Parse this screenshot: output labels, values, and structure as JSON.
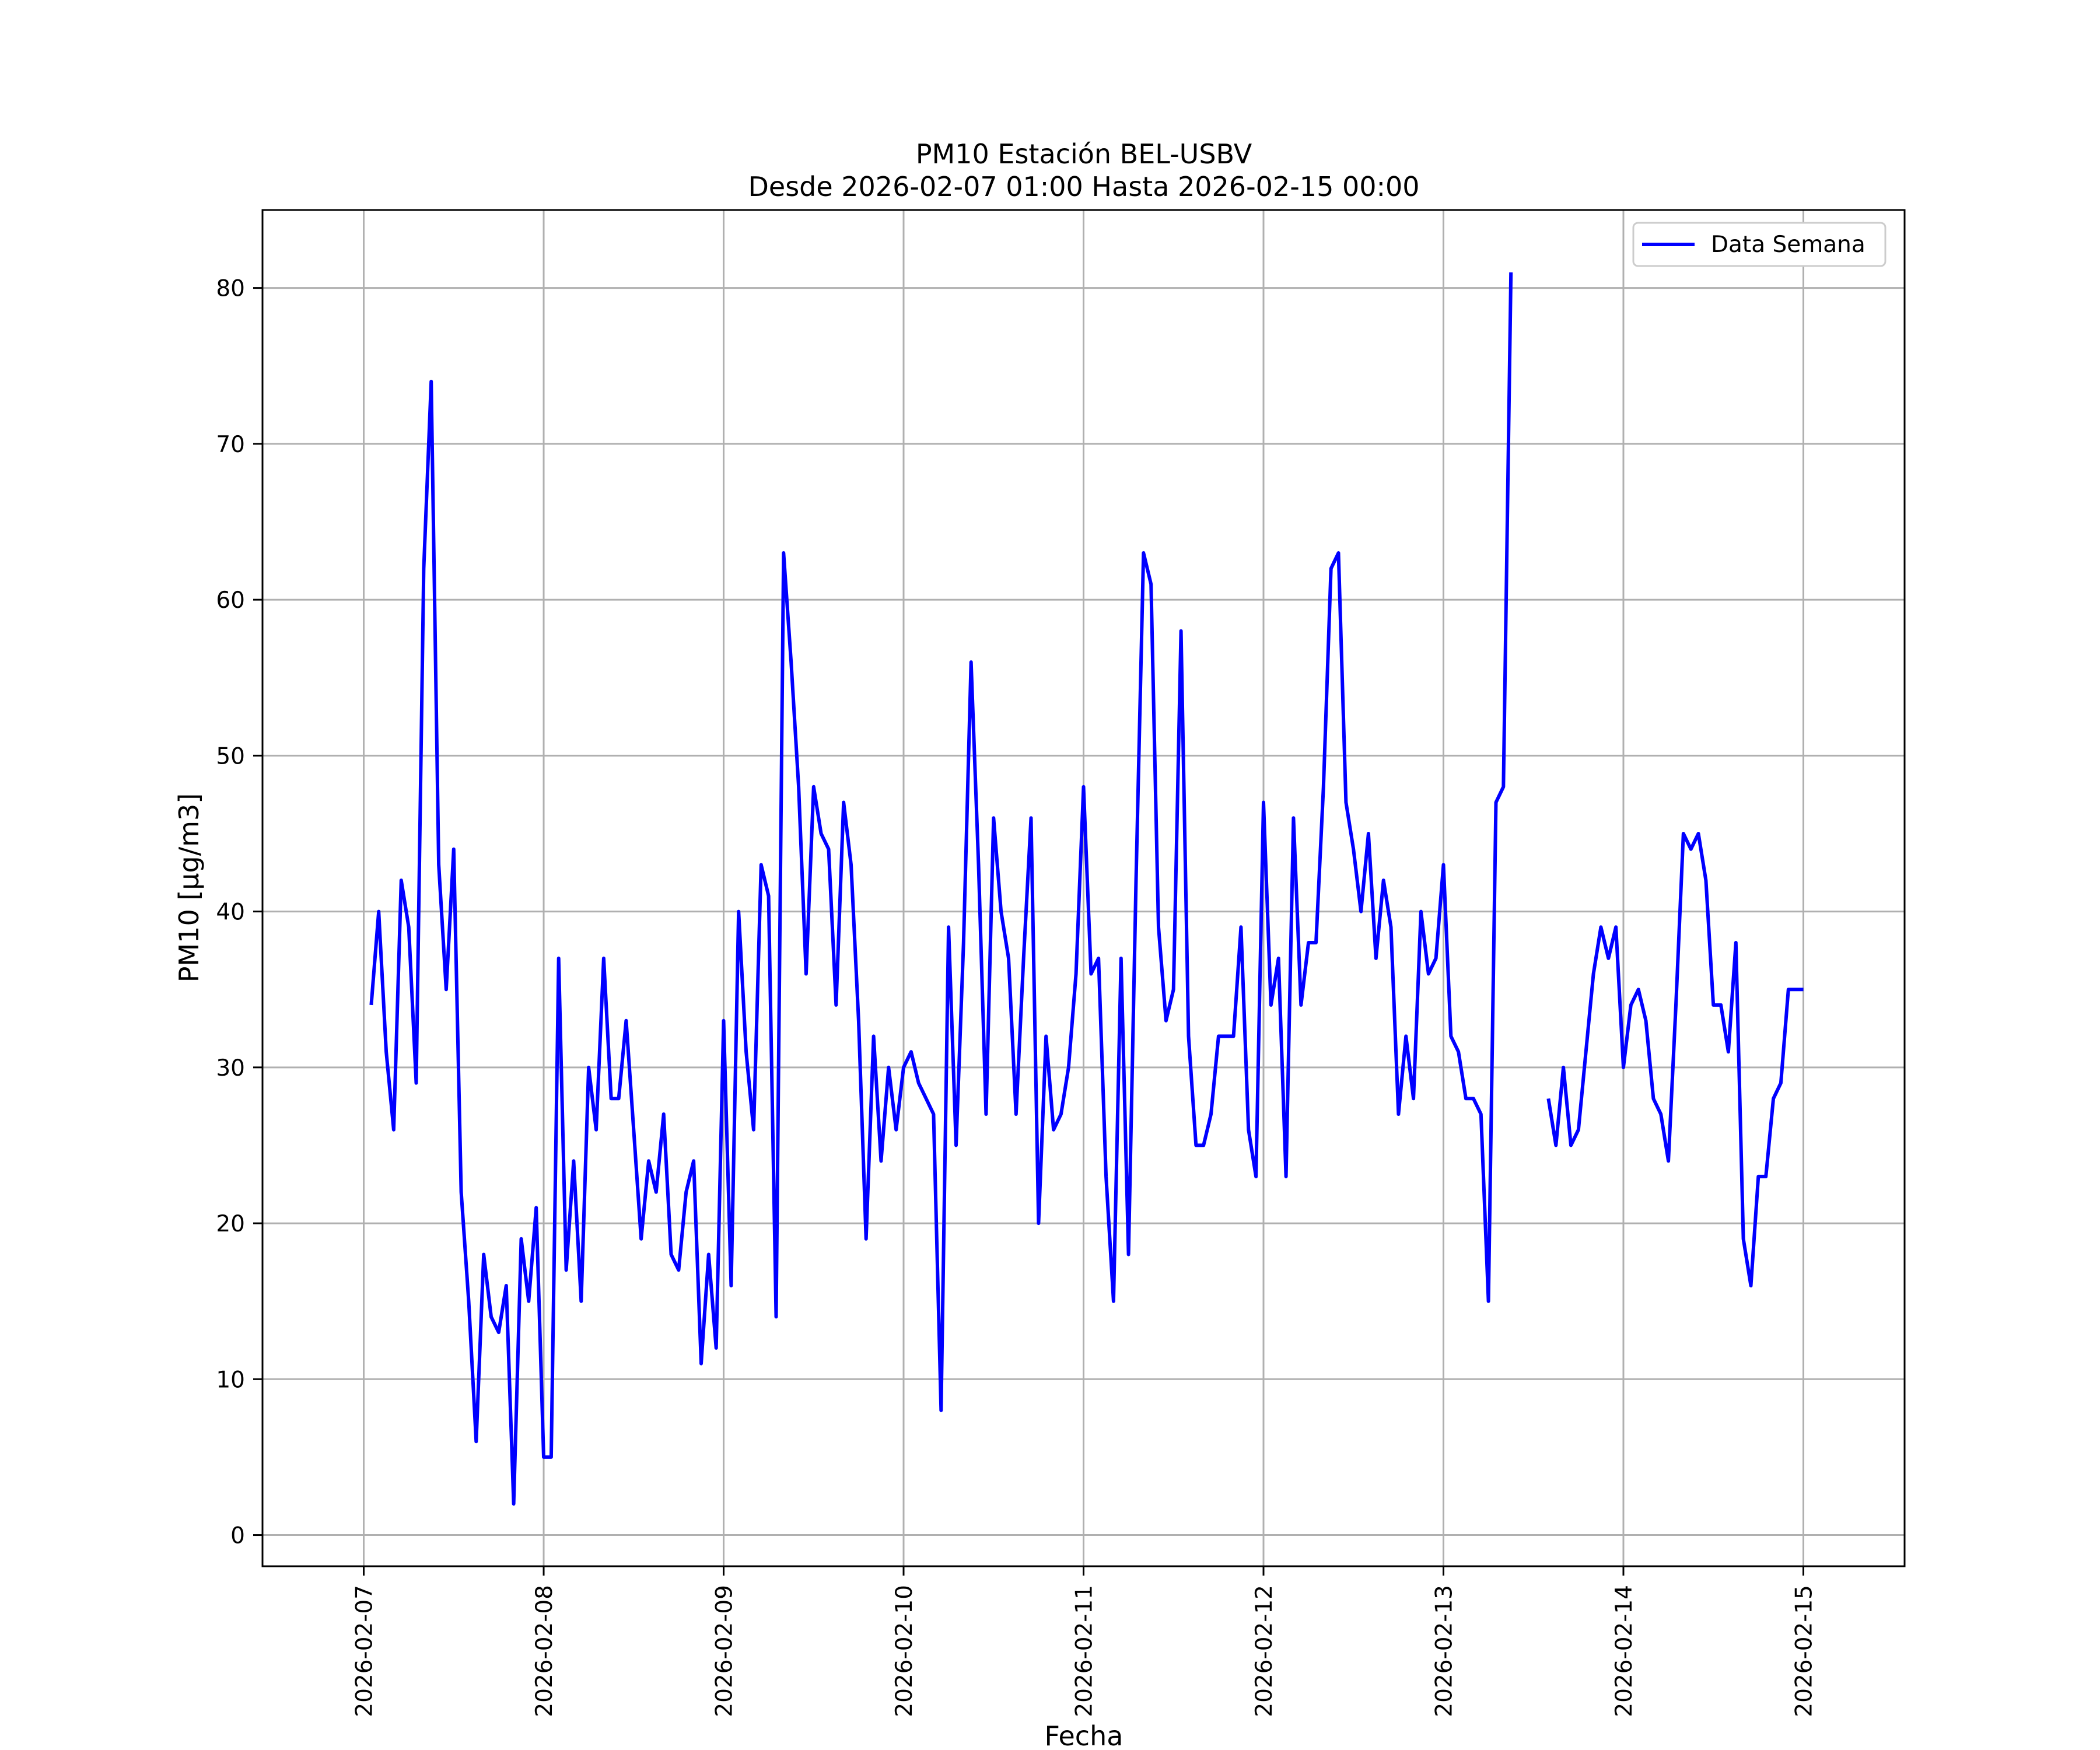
{
  "chart_data": {
    "type": "line",
    "title": "PM10 Estación BEL-USBV",
    "subtitle": "Desde 2026-02-07 01:00 Hasta 2026-02-15 00:00",
    "xlabel": "Fecha",
    "ylabel": "PM10 [µg/m3]",
    "x_tick_labels": [
      "2026-02-07",
      "2026-02-08",
      "2026-02-09",
      "2026-02-10",
      "2026-02-11",
      "2026-02-12",
      "2026-02-13",
      "2026-02-14",
      "2026-02-15"
    ],
    "y_ticks": [
      0,
      10,
      20,
      30,
      40,
      50,
      60,
      70,
      80
    ],
    "xlim": [
      "2026-02-06 10:30",
      "2026-02-15 13:30"
    ],
    "ylim": [
      -2,
      85
    ],
    "grid": true,
    "legend_position": "top-right",
    "series": [
      {
        "name": "Data Semana",
        "color": "#0000ff",
        "points": [
          [
            "2026-02-07 01:00",
            34
          ],
          [
            "2026-02-07 02:00",
            40
          ],
          [
            "2026-02-07 03:00",
            31
          ],
          [
            "2026-02-07 04:00",
            26
          ],
          [
            "2026-02-07 05:00",
            42
          ],
          [
            "2026-02-07 06:00",
            39
          ],
          [
            "2026-02-07 07:00",
            29
          ],
          [
            "2026-02-07 08:00",
            62
          ],
          [
            "2026-02-07 09:00",
            74
          ],
          [
            "2026-02-07 10:00",
            43
          ],
          [
            "2026-02-07 11:00",
            35
          ],
          [
            "2026-02-07 12:00",
            44
          ],
          [
            "2026-02-07 13:00",
            22
          ],
          [
            "2026-02-07 14:00",
            15
          ],
          [
            "2026-02-07 15:00",
            6
          ],
          [
            "2026-02-07 16:00",
            18
          ],
          [
            "2026-02-07 17:00",
            14
          ],
          [
            "2026-02-07 18:00",
            13
          ],
          [
            "2026-02-07 19:00",
            16
          ],
          [
            "2026-02-07 20:00",
            2
          ],
          [
            "2026-02-07 21:00",
            19
          ],
          [
            "2026-02-07 22:00",
            15
          ],
          [
            "2026-02-07 23:00",
            21
          ],
          [
            "2026-02-08 00:00",
            5
          ],
          [
            "2026-02-08 01:00",
            5
          ],
          [
            "2026-02-08 02:00",
            37
          ],
          [
            "2026-02-08 03:00",
            17
          ],
          [
            "2026-02-08 04:00",
            24
          ],
          [
            "2026-02-08 05:00",
            15
          ],
          [
            "2026-02-08 06:00",
            30
          ],
          [
            "2026-02-08 07:00",
            26
          ],
          [
            "2026-02-08 08:00",
            37
          ],
          [
            "2026-02-08 09:00",
            28
          ],
          [
            "2026-02-08 10:00",
            28
          ],
          [
            "2026-02-08 11:00",
            33
          ],
          [
            "2026-02-08 12:00",
            26
          ],
          [
            "2026-02-08 13:00",
            19
          ],
          [
            "2026-02-08 14:00",
            24
          ],
          [
            "2026-02-08 15:00",
            22
          ],
          [
            "2026-02-08 16:00",
            27
          ],
          [
            "2026-02-08 17:00",
            18
          ],
          [
            "2026-02-08 18:00",
            17
          ],
          [
            "2026-02-08 19:00",
            22
          ],
          [
            "2026-02-08 20:00",
            24
          ],
          [
            "2026-02-08 21:00",
            11
          ],
          [
            "2026-02-08 22:00",
            18
          ],
          [
            "2026-02-08 23:00",
            12
          ],
          [
            "2026-02-09 00:00",
            33
          ],
          [
            "2026-02-09 01:00",
            16
          ],
          [
            "2026-02-09 02:00",
            40
          ],
          [
            "2026-02-09 03:00",
            31
          ],
          [
            "2026-02-09 04:00",
            26
          ],
          [
            "2026-02-09 05:00",
            43
          ],
          [
            "2026-02-09 06:00",
            41
          ],
          [
            "2026-02-09 07:00",
            14
          ],
          [
            "2026-02-09 08:00",
            63
          ],
          [
            "2026-02-09 09:00",
            56
          ],
          [
            "2026-02-09 10:00",
            48
          ],
          [
            "2026-02-09 11:00",
            36
          ],
          [
            "2026-02-09 12:00",
            48
          ],
          [
            "2026-02-09 13:00",
            45
          ],
          [
            "2026-02-09 14:00",
            44
          ],
          [
            "2026-02-09 15:00",
            34
          ],
          [
            "2026-02-09 16:00",
            47
          ],
          [
            "2026-02-09 17:00",
            43
          ],
          [
            "2026-02-09 18:00",
            33
          ],
          [
            "2026-02-09 19:00",
            19
          ],
          [
            "2026-02-09 20:00",
            32
          ],
          [
            "2026-02-09 21:00",
            24
          ],
          [
            "2026-02-09 22:00",
            30
          ],
          [
            "2026-02-09 23:00",
            26
          ],
          [
            "2026-02-10 00:00",
            30
          ],
          [
            "2026-02-10 01:00",
            31
          ],
          [
            "2026-02-10 02:00",
            29
          ],
          [
            "2026-02-10 03:00",
            28
          ],
          [
            "2026-02-10 04:00",
            27
          ],
          [
            "2026-02-10 05:00",
            8
          ],
          [
            "2026-02-10 06:00",
            39
          ],
          [
            "2026-02-10 07:00",
            25
          ],
          [
            "2026-02-10 08:00",
            38
          ],
          [
            "2026-02-10 09:00",
            56
          ],
          [
            "2026-02-10 10:00",
            43
          ],
          [
            "2026-02-10 11:00",
            27
          ],
          [
            "2026-02-10 12:00",
            46
          ],
          [
            "2026-02-10 13:00",
            40
          ],
          [
            "2026-02-10 14:00",
            37
          ],
          [
            "2026-02-10 15:00",
            27
          ],
          [
            "2026-02-10 16:00",
            37
          ],
          [
            "2026-02-10 17:00",
            46
          ],
          [
            "2026-02-10 18:00",
            20
          ],
          [
            "2026-02-10 19:00",
            32
          ],
          [
            "2026-02-10 20:00",
            26
          ],
          [
            "2026-02-10 21:00",
            27
          ],
          [
            "2026-02-10 22:00",
            30
          ],
          [
            "2026-02-10 23:00",
            36
          ],
          [
            "2026-02-11 00:00",
            48
          ],
          [
            "2026-02-11 01:00",
            36
          ],
          [
            "2026-02-11 02:00",
            37
          ],
          [
            "2026-02-11 03:00",
            23
          ],
          [
            "2026-02-11 04:00",
            15
          ],
          [
            "2026-02-11 05:00",
            37
          ],
          [
            "2026-02-11 06:00",
            18
          ],
          [
            "2026-02-11 07:00",
            42
          ],
          [
            "2026-02-11 08:00",
            63
          ],
          [
            "2026-02-11 09:00",
            61
          ],
          [
            "2026-02-11 10:00",
            39
          ],
          [
            "2026-02-11 11:00",
            33
          ],
          [
            "2026-02-11 12:00",
            35
          ],
          [
            "2026-02-11 13:00",
            58
          ],
          [
            "2026-02-11 14:00",
            32
          ],
          [
            "2026-02-11 15:00",
            25
          ],
          [
            "2026-02-11 16:00",
            25
          ],
          [
            "2026-02-11 17:00",
            27
          ],
          [
            "2026-02-11 18:00",
            32
          ],
          [
            "2026-02-11 19:00",
            32
          ],
          [
            "2026-02-11 20:00",
            32
          ],
          [
            "2026-02-11 21:00",
            39
          ],
          [
            "2026-02-11 22:00",
            26
          ],
          [
            "2026-02-11 23:00",
            23
          ],
          [
            "2026-02-12 00:00",
            47
          ],
          [
            "2026-02-12 01:00",
            34
          ],
          [
            "2026-02-12 02:00",
            37
          ],
          [
            "2026-02-12 03:00",
            23
          ],
          [
            "2026-02-12 04:00",
            46
          ],
          [
            "2026-02-12 05:00",
            34
          ],
          [
            "2026-02-12 06:00",
            38
          ],
          [
            "2026-02-12 07:00",
            38
          ],
          [
            "2026-02-12 08:00",
            48
          ],
          [
            "2026-02-12 09:00",
            62
          ],
          [
            "2026-02-12 10:00",
            63
          ],
          [
            "2026-02-12 11:00",
            47
          ],
          [
            "2026-02-12 12:00",
            44
          ],
          [
            "2026-02-12 13:00",
            40
          ],
          [
            "2026-02-12 14:00",
            45
          ],
          [
            "2026-02-12 15:00",
            37
          ],
          [
            "2026-02-12 16:00",
            42
          ],
          [
            "2026-02-12 17:00",
            39
          ],
          [
            "2026-02-12 18:00",
            27
          ],
          [
            "2026-02-12 19:00",
            32
          ],
          [
            "2026-02-12 20:00",
            28
          ],
          [
            "2026-02-12 21:00",
            40
          ],
          [
            "2026-02-12 22:00",
            36
          ],
          [
            "2026-02-12 23:00",
            37
          ],
          [
            "2026-02-13 00:00",
            43
          ],
          [
            "2026-02-13 01:00",
            32
          ],
          [
            "2026-02-13 02:00",
            31
          ],
          [
            "2026-02-13 03:00",
            28
          ],
          [
            "2026-02-13 04:00",
            28
          ],
          [
            "2026-02-13 05:00",
            27
          ],
          [
            "2026-02-13 06:00",
            15
          ],
          [
            "2026-02-13 07:00",
            47
          ],
          [
            "2026-02-13 08:00",
            48
          ],
          [
            "2026-02-13 09:00",
            81
          ],
          [
            "2026-02-13 14:00",
            28
          ],
          [
            "2026-02-13 15:00",
            25
          ],
          [
            "2026-02-13 16:00",
            30
          ],
          [
            "2026-02-13 17:00",
            25
          ],
          [
            "2026-02-13 18:00",
            26
          ],
          [
            "2026-02-13 19:00",
            31
          ],
          [
            "2026-02-13 20:00",
            36
          ],
          [
            "2026-02-13 21:00",
            39
          ],
          [
            "2026-02-13 22:00",
            37
          ],
          [
            "2026-02-13 23:00",
            39
          ],
          [
            "2026-02-14 00:00",
            30
          ],
          [
            "2026-02-14 01:00",
            34
          ],
          [
            "2026-02-14 02:00",
            35
          ],
          [
            "2026-02-14 03:00",
            33
          ],
          [
            "2026-02-14 04:00",
            28
          ],
          [
            "2026-02-14 05:00",
            27
          ],
          [
            "2026-02-14 06:00",
            24
          ],
          [
            "2026-02-14 07:00",
            34
          ],
          [
            "2026-02-14 08:00",
            45
          ],
          [
            "2026-02-14 09:00",
            44
          ],
          [
            "2026-02-14 10:00",
            45
          ],
          [
            "2026-02-14 11:00",
            42
          ],
          [
            "2026-02-14 12:00",
            34
          ],
          [
            "2026-02-14 13:00",
            34
          ],
          [
            "2026-02-14 14:00",
            31
          ],
          [
            "2026-02-14 15:00",
            38
          ],
          [
            "2026-02-14 16:00",
            19
          ],
          [
            "2026-02-14 17:00",
            16
          ],
          [
            "2026-02-14 18:00",
            23
          ],
          [
            "2026-02-14 19:00",
            23
          ],
          [
            "2026-02-14 20:00",
            28
          ],
          [
            "2026-02-14 21:00",
            29
          ],
          [
            "2026-02-14 22:00",
            35
          ],
          [
            "2026-02-14 23:00",
            35
          ],
          [
            "2026-02-15 00:00",
            35
          ]
        ]
      }
    ]
  }
}
